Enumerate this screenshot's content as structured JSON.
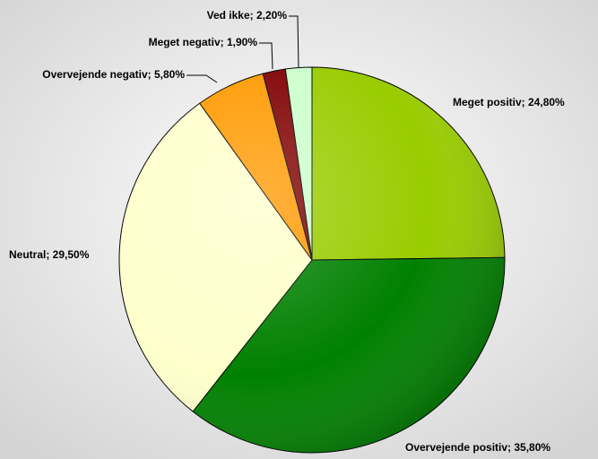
{
  "chart_data": {
    "type": "pie",
    "values": [
      24.8,
      35.8,
      29.5,
      5.8,
      1.9,
      2.2
    ],
    "value_labels": [
      "Meget positiv; 24,80%",
      "Overvejende positiv; 35,80%",
      "Neutral; 29,50%",
      "Overvejende negativ; 5,80%",
      "Meget negativ; 1,90%",
      "Ved ikke; 2,20%"
    ],
    "colors": [
      "#99cc00",
      "#008000",
      "#ffffcc",
      "#ff9900",
      "#800000",
      "#ccffcc"
    ]
  }
}
